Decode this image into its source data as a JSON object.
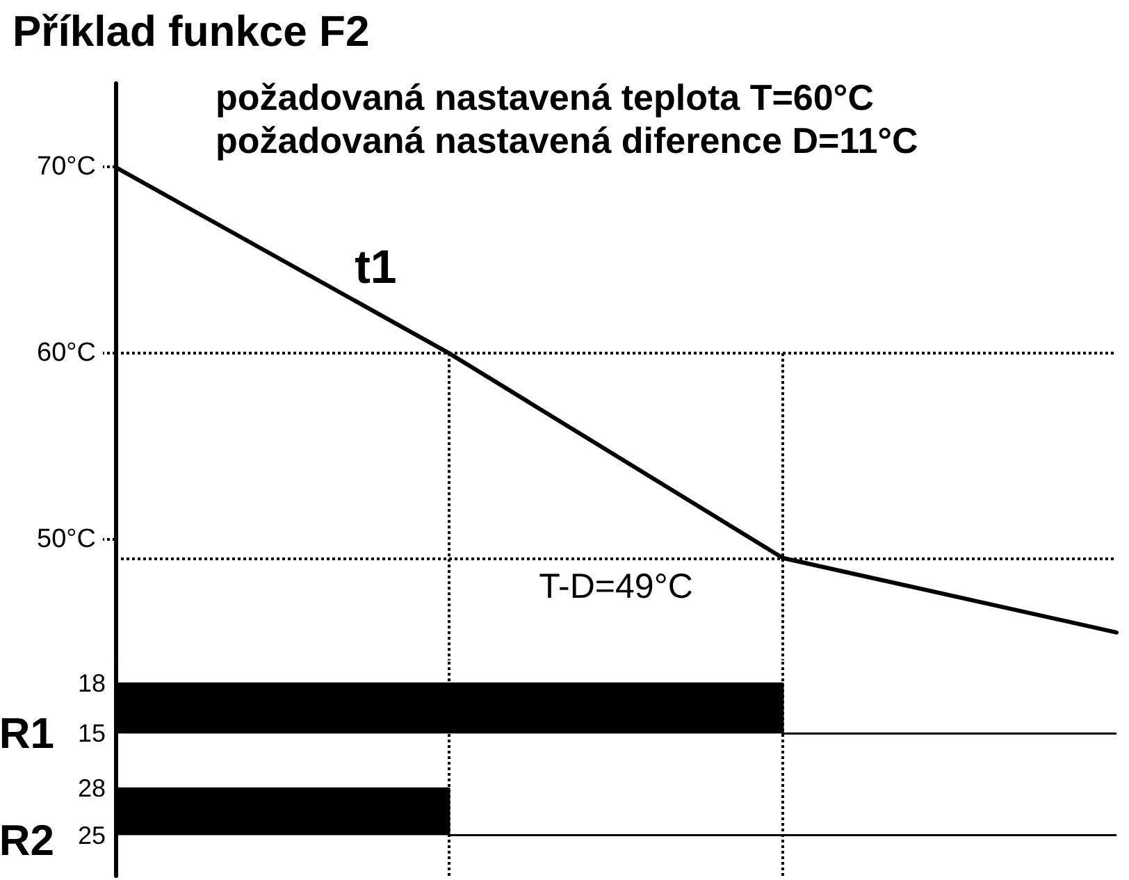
{
  "chart_data": [
    {
      "type": "line",
      "title": "Příklad funkce F2",
      "annotations": [
        "požadovaná nastavená teplota T=60°C",
        "požadovaná nastavená diference D=11°C"
      ],
      "categories": [
        null,
        null,
        null,
        null
      ],
      "series": [
        {
          "name": "t1",
          "color": "#000000",
          "values": [
            70,
            60,
            49,
            45
          ]
        }
      ],
      "ylim": [
        43.5,
        74.5
      ],
      "yticks": [
        {
          "value": 50,
          "label": "50°C"
        },
        {
          "value": 60,
          "label": "60°C"
        },
        {
          "value": 70,
          "label": "70°C"
        }
      ],
      "marker": "none",
      "ref_lines": [
        {
          "axis": "y",
          "value": 60,
          "line_style": "dotted"
        },
        {
          "axis": "y",
          "value": 49,
          "label": "T-D=49°C",
          "line_style": "dotted"
        }
      ]
    },
    {
      "type": "area",
      "ylabel": "R1",
      "categories": [
        null,
        null,
        null,
        null
      ],
      "series": [
        {
          "color": "#000000",
          "values": [
            18,
            18,
            15,
            15
          ]
        }
      ],
      "ylim": [
        13.3,
        19.3
      ],
      "yticks": [
        15,
        18
      ],
      "marker": "none"
    },
    {
      "type": "area",
      "ylabel": "R2",
      "categories": [
        null,
        null,
        null,
        null
      ],
      "series": [
        {
          "color": "#000000",
          "values": [
            28,
            25,
            25,
            25
          ]
        }
      ],
      "ylim": [
        22.4,
        29.7
      ],
      "yticks": [
        25,
        28
      ],
      "marker": "none"
    }
  ]
}
